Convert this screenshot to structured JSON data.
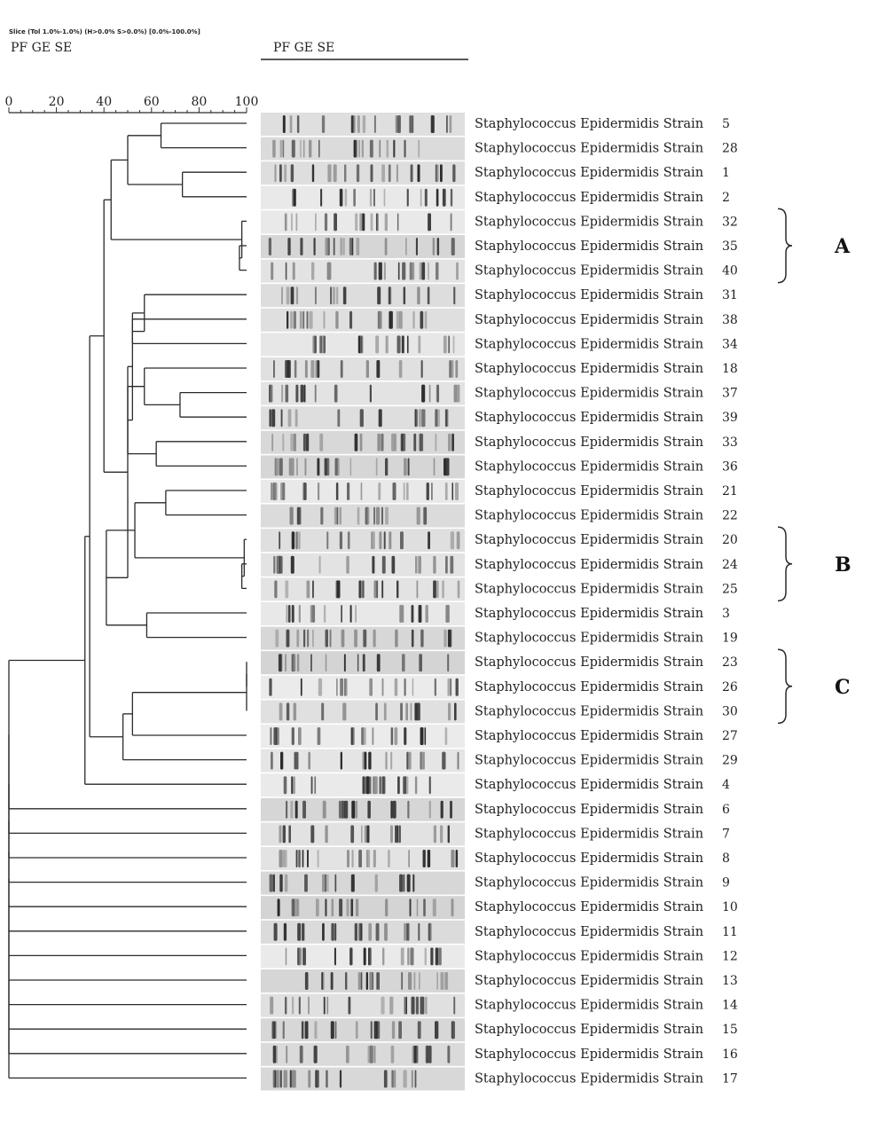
{
  "header": {
    "settings_line": "Slice (Tol 1.0%-1.0%) (H>0.0% S>0.0%) [0.0%-100.0%]",
    "experiment_label_left": "PF GE SE",
    "experiment_label_right": "PF GE SE"
  },
  "scale": {
    "ticks": [
      "0",
      "20",
      "40",
      "60",
      "80",
      "100"
    ]
  },
  "strains": [
    {
      "label": "Staphylococcus Epidermidis Strain",
      "number": "5"
    },
    {
      "label": "Staphylococcus Epidermidis Strain",
      "number": "28"
    },
    {
      "label": "Staphylococcus Epidermidis Strain",
      "number": "1"
    },
    {
      "label": "Staphylococcus Epidermidis Strain",
      "number": "2"
    },
    {
      "label": "Staphylococcus Epidermidis Strain",
      "number": "32"
    },
    {
      "label": "Staphylococcus Epidermidis Strain",
      "number": "35"
    },
    {
      "label": "Staphylococcus Epidermidis Strain",
      "number": "40"
    },
    {
      "label": "Staphylococcus Epidermidis Strain",
      "number": "31"
    },
    {
      "label": "Staphylococcus Epidermidis Strain",
      "number": "38"
    },
    {
      "label": "Staphylococcus Epidermidis Strain",
      "number": "34"
    },
    {
      "label": "Staphylococcus Epidermidis Strain",
      "number": "18"
    },
    {
      "label": "Staphylococcus Epidermidis Strain",
      "number": "37"
    },
    {
      "label": "Staphylococcus Epidermidis Strain",
      "number": "39"
    },
    {
      "label": "Staphylococcus Epidermidis Strain",
      "number": "33"
    },
    {
      "label": "Staphylococcus Epidermidis Strain",
      "number": "36"
    },
    {
      "label": "Staphylococcus Epidermidis Strain",
      "number": "21"
    },
    {
      "label": "Staphylococcus Epidermidis Strain",
      "number": "22"
    },
    {
      "label": "Staphylococcus Epidermidis Strain",
      "number": "20"
    },
    {
      "label": "Staphylococcus Epidermidis Strain",
      "number": "24"
    },
    {
      "label": "Staphylococcus Epidermidis Strain",
      "number": "25"
    },
    {
      "label": "Staphylococcus Epidermidis Strain",
      "number": "3"
    },
    {
      "label": "Staphylococcus Epidermidis Strain",
      "number": "19"
    },
    {
      "label": "Staphylococcus Epidermidis Strain",
      "number": "23"
    },
    {
      "label": "Staphylococcus Epidermidis Strain",
      "number": "26"
    },
    {
      "label": "Staphylococcus Epidermidis Strain",
      "number": "30"
    },
    {
      "label": "Staphylococcus Epidermidis Strain",
      "number": "27"
    },
    {
      "label": "Staphylococcus Epidermidis Strain",
      "number": "29"
    },
    {
      "label": "Staphylococcus Epidermidis Strain",
      "number": "4"
    },
    {
      "label": "Staphylococcus Epidermidis Strain",
      "number": "6"
    },
    {
      "label": "Staphylococcus Epidermidis Strain",
      "number": "7"
    },
    {
      "label": "Staphylococcus Epidermidis Strain",
      "number": "8"
    },
    {
      "label": "Staphylococcus Epidermidis Strain",
      "number": "9"
    },
    {
      "label": "Staphylococcus Epidermidis Strain",
      "number": "10"
    },
    {
      "label": "Staphylococcus Epidermidis Strain",
      "number": "11"
    },
    {
      "label": "Staphylococcus Epidermidis Strain",
      "number": "12"
    },
    {
      "label": "Staphylococcus Epidermidis Strain",
      "number": "13"
    },
    {
      "label": "Staphylococcus Epidermidis Strain",
      "number": "14"
    },
    {
      "label": "Staphylococcus Epidermidis Strain",
      "number": "15"
    },
    {
      "label": "Staphylococcus Epidermidis Strain",
      "number": "16"
    },
    {
      "label": "Staphylococcus Epidermidis Strain",
      "number": "17"
    }
  ],
  "groups": [
    {
      "label": "A",
      "rows": [
        4,
        6
      ]
    },
    {
      "label": "B",
      "rows": [
        17,
        19
      ]
    },
    {
      "label": "C",
      "rows": [
        22,
        24
      ]
    }
  ],
  "dendrogram": {
    "nodes": [
      {
        "a": 0,
        "b": 1,
        "sim": 64
      },
      {
        "a": 2,
        "b": 3,
        "sim": 73
      },
      {
        "a": "n0",
        "b": "n1",
        "sim": 50
      },
      {
        "a": 5,
        "b": 6,
        "sim": 97
      },
      {
        "a": 4,
        "b": "n3",
        "sim": 98
      },
      {
        "a": "n2",
        "b": "n4",
        "sim": 43
      },
      {
        "a": 8,
        "b": 9,
        "sim": 52
      },
      {
        "a": 7,
        "b": "n6",
        "sim": 57
      },
      {
        "a": 11,
        "b": 12,
        "sim": 72
      },
      {
        "a": 10,
        "b": "n8",
        "sim": 57
      },
      {
        "a": 13,
        "b": 14,
        "sim": 62
      },
      {
        "a": "n9",
        "b": "n10",
        "sim": 50
      },
      {
        "a": "n7",
        "b": "n11",
        "sim": 52
      },
      {
        "a": 15,
        "b": 16,
        "sim": 66
      },
      {
        "a": 18,
        "b": 19,
        "sim": 98
      },
      {
        "a": 17,
        "b": "n14",
        "sim": 99
      },
      {
        "a": "n13",
        "b": "n15",
        "sim": 53
      },
      {
        "a": 20,
        "b": 21,
        "sim": 58
      },
      {
        "a": "n16",
        "b": "n17",
        "sim": 41
      },
      {
        "a": "n12",
        "b": "n18",
        "sim": 50
      },
      {
        "a": "n5",
        "b": "n19",
        "sim": 40
      },
      {
        "a": 22,
        "b": 23,
        "sim": 100
      },
      {
        "a": "n21",
        "b": 24,
        "sim": 100
      },
      {
        "a": "n22",
        "b": 25,
        "sim": 52
      },
      {
        "a": "n23",
        "b": 26,
        "sim": 48
      },
      {
        "a": "n20",
        "b": "n24",
        "sim": 34
      },
      {
        "a": "n25",
        "b": 27,
        "sim": 32
      },
      {
        "a": "n26",
        "b": 28,
        "sim": 0
      },
      {
        "a": "n27",
        "b": 29,
        "sim": 0
      },
      {
        "a": "n28",
        "b": 30,
        "sim": 0
      },
      {
        "a": "n29",
        "b": 31,
        "sim": 0
      },
      {
        "a": "n30",
        "b": 32,
        "sim": 0
      },
      {
        "a": "n31",
        "b": 33,
        "sim": 0
      },
      {
        "a": "n32",
        "b": 34,
        "sim": 0
      },
      {
        "a": "n33",
        "b": 35,
        "sim": 0
      },
      {
        "a": "n34",
        "b": 36,
        "sim": 0
      },
      {
        "a": "n35",
        "b": 37,
        "sim": 0
      },
      {
        "a": "n36",
        "b": 38,
        "sim": 0
      },
      {
        "a": "n37",
        "b": 39,
        "sim": 0
      }
    ]
  },
  "colors": {
    "line": "#2a2a2a",
    "gel_bg": "#d9d9d9",
    "band_dark": "#2b2b2b",
    "band_light": "#8c8c8c"
  }
}
